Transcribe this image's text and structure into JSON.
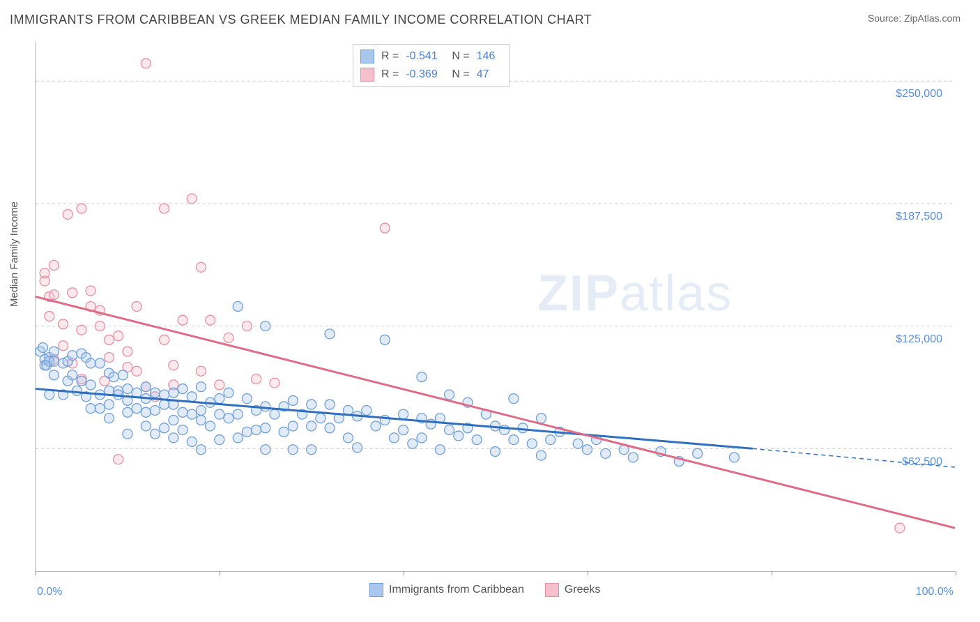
{
  "title": "IMMIGRANTS FROM CARIBBEAN VS GREEK MEDIAN FAMILY INCOME CORRELATION CHART",
  "source_label": "Source: ",
  "source_name": "ZipAtlas.com",
  "watermark": {
    "part1": "ZIP",
    "part2": "atlas"
  },
  "y_axis_label": "Median Family Income",
  "chart": {
    "type": "scatter",
    "background_color": "#ffffff",
    "grid_color": "#cccccc",
    "axis_color": "#bbbbbb",
    "tick_label_color": "#5a8fd8",
    "tick_fontsize": 16,
    "title_fontsize": 18,
    "xlim": [
      0,
      100
    ],
    "ylim": [
      0,
      270000
    ],
    "x_ticks": [
      0,
      20,
      40,
      60,
      80,
      100
    ],
    "x_tick_labels_shown": {
      "0": "0.0%",
      "100": "100.0%"
    },
    "y_ticks": [
      62500,
      125000,
      187500,
      250000
    ],
    "y_tick_labels": [
      "$62,500",
      "$125,000",
      "$187,500",
      "$250,000"
    ],
    "marker_radius": 7,
    "marker_fill_opacity": 0.35,
    "line_width": 3,
    "series": [
      {
        "name": "Immigrants from Caribbean",
        "color_fill": "#a9c6ec",
        "color_stroke": "#6f9fd8",
        "line_color": "#2e6fc0",
        "r_value": "-0.541",
        "n_value": "146",
        "trend": {
          "x1": 0,
          "y1": 93000,
          "x2": 78,
          "y2": 62500,
          "dash_x2": 100,
          "dash_y2": 53000
        },
        "points": [
          [
            0.5,
            112000
          ],
          [
            0.8,
            114000
          ],
          [
            1,
            108000
          ],
          [
            1,
            105000
          ],
          [
            1.2,
            105000
          ],
          [
            1.5,
            109000
          ],
          [
            1.5,
            107000
          ],
          [
            1.5,
            90000
          ],
          [
            2,
            112000
          ],
          [
            2,
            107000
          ],
          [
            2,
            100000
          ],
          [
            3,
            90000
          ],
          [
            3,
            106000
          ],
          [
            3.5,
            107000
          ],
          [
            3.5,
            97000
          ],
          [
            4,
            100000
          ],
          [
            4,
            110000
          ],
          [
            4.5,
            92000
          ],
          [
            5,
            111000
          ],
          [
            5,
            97000
          ],
          [
            5.5,
            109000
          ],
          [
            5.5,
            89000
          ],
          [
            6,
            106000
          ],
          [
            6,
            95000
          ],
          [
            6,
            83000
          ],
          [
            7,
            106000
          ],
          [
            7,
            90000
          ],
          [
            7,
            83000
          ],
          [
            8,
            101000
          ],
          [
            8,
            92000
          ],
          [
            8,
            85000
          ],
          [
            8,
            78000
          ],
          [
            8.5,
            99000
          ],
          [
            9,
            92000
          ],
          [
            9,
            90000
          ],
          [
            9.5,
            100000
          ],
          [
            10,
            93000
          ],
          [
            10,
            87000
          ],
          [
            10,
            81000
          ],
          [
            10,
            70000
          ],
          [
            11,
            91000
          ],
          [
            11,
            83000
          ],
          [
            12,
            94000
          ],
          [
            12,
            88000
          ],
          [
            12,
            81000
          ],
          [
            12,
            74000
          ],
          [
            13,
            91000
          ],
          [
            13,
            82000
          ],
          [
            13,
            70000
          ],
          [
            14,
            90000
          ],
          [
            14,
            85000
          ],
          [
            14,
            73000
          ],
          [
            15,
            91000
          ],
          [
            15,
            85000
          ],
          [
            15,
            77000
          ],
          [
            15,
            68000
          ],
          [
            16,
            93000
          ],
          [
            16,
            81000
          ],
          [
            16,
            72000
          ],
          [
            17,
            89000
          ],
          [
            17,
            80000
          ],
          [
            17,
            66000
          ],
          [
            18,
            94000
          ],
          [
            18,
            82000
          ],
          [
            18,
            77000
          ],
          [
            18,
            62000
          ],
          [
            19,
            86000
          ],
          [
            19,
            74000
          ],
          [
            20,
            88000
          ],
          [
            20,
            80000
          ],
          [
            20,
            67000
          ],
          [
            21,
            91000
          ],
          [
            21,
            78000
          ],
          [
            22,
            135000
          ],
          [
            22,
            80000
          ],
          [
            22,
            68000
          ],
          [
            23,
            88000
          ],
          [
            23,
            71000
          ],
          [
            24,
            82000
          ],
          [
            24,
            72000
          ],
          [
            25,
            125000
          ],
          [
            25,
            84000
          ],
          [
            25,
            73000
          ],
          [
            25,
            62000
          ],
          [
            26,
            80000
          ],
          [
            27,
            84000
          ],
          [
            27,
            71000
          ],
          [
            28,
            87000
          ],
          [
            28,
            74000
          ],
          [
            28,
            62000
          ],
          [
            29,
            80000
          ],
          [
            30,
            85000
          ],
          [
            30,
            74000
          ],
          [
            30,
            62000
          ],
          [
            31,
            78000
          ],
          [
            32,
            121000
          ],
          [
            32,
            85000
          ],
          [
            32,
            73000
          ],
          [
            33,
            78000
          ],
          [
            34,
            82000
          ],
          [
            34,
            68000
          ],
          [
            35,
            79000
          ],
          [
            35,
            63000
          ],
          [
            36,
            82000
          ],
          [
            37,
            74000
          ],
          [
            38,
            118000
          ],
          [
            38,
            77000
          ],
          [
            39,
            68000
          ],
          [
            40,
            80000
          ],
          [
            40,
            72000
          ],
          [
            41,
            65000
          ],
          [
            42,
            99000
          ],
          [
            42,
            78000
          ],
          [
            42,
            68000
          ],
          [
            43,
            75000
          ],
          [
            44,
            78000
          ],
          [
            44,
            62000
          ],
          [
            45,
            90000
          ],
          [
            45,
            72000
          ],
          [
            46,
            69000
          ],
          [
            47,
            86000
          ],
          [
            47,
            73000
          ],
          [
            48,
            67000
          ],
          [
            49,
            80000
          ],
          [
            50,
            74000
          ],
          [
            50,
            61000
          ],
          [
            51,
            72000
          ],
          [
            52,
            88000
          ],
          [
            52,
            67000
          ],
          [
            53,
            73000
          ],
          [
            54,
            65000
          ],
          [
            55,
            78000
          ],
          [
            55,
            59000
          ],
          [
            56,
            67000
          ],
          [
            57,
            71000
          ],
          [
            59,
            65000
          ],
          [
            60,
            62000
          ],
          [
            61,
            67000
          ],
          [
            62,
            60000
          ],
          [
            64,
            62000
          ],
          [
            65,
            58000
          ],
          [
            68,
            61000
          ],
          [
            70,
            56000
          ],
          [
            72,
            60000
          ],
          [
            76,
            58000
          ]
        ]
      },
      {
        "name": "Greeks",
        "color_fill": "#f3c0cb",
        "color_stroke": "#e58fa3",
        "line_color": "#e06b87",
        "r_value": "-0.369",
        "n_value": "47",
        "trend": {
          "x1": 0,
          "y1": 140000,
          "x2": 100,
          "y2": 22000
        },
        "points": [
          [
            1,
            148000
          ],
          [
            1,
            152000
          ],
          [
            1.5,
            130000
          ],
          [
            1.5,
            140000
          ],
          [
            2,
            156000
          ],
          [
            2,
            141000
          ],
          [
            2,
            108000
          ],
          [
            3,
            126000
          ],
          [
            3,
            115000
          ],
          [
            3.5,
            182000
          ],
          [
            4,
            142000
          ],
          [
            4,
            106000
          ],
          [
            5,
            185000
          ],
          [
            5,
            123000
          ],
          [
            5,
            98000
          ],
          [
            6,
            135000
          ],
          [
            6,
            143000
          ],
          [
            7,
            125000
          ],
          [
            7,
            133000
          ],
          [
            7.5,
            97000
          ],
          [
            8,
            118000
          ],
          [
            8,
            109000
          ],
          [
            9,
            120000
          ],
          [
            9,
            57000
          ],
          [
            10,
            112000
          ],
          [
            10,
            104000
          ],
          [
            11,
            135000
          ],
          [
            11,
            102000
          ],
          [
            12,
            94000
          ],
          [
            12,
            259000
          ],
          [
            13,
            89000
          ],
          [
            14,
            185000
          ],
          [
            14,
            118000
          ],
          [
            15,
            105000
          ],
          [
            15,
            95000
          ],
          [
            16,
            128000
          ],
          [
            17,
            190000
          ],
          [
            18,
            155000
          ],
          [
            18,
            102000
          ],
          [
            19,
            128000
          ],
          [
            20,
            95000
          ],
          [
            21,
            119000
          ],
          [
            23,
            125000
          ],
          [
            24,
            98000
          ],
          [
            26,
            96000
          ],
          [
            38,
            175000
          ],
          [
            94,
            22000
          ]
        ]
      }
    ]
  },
  "stats_box": {
    "r_label": "R =",
    "n_label": "N ="
  },
  "bottom_legend": {
    "items": [
      "Immigrants from Caribbean",
      "Greeks"
    ]
  }
}
